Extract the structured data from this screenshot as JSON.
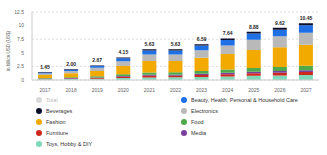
{
  "chart_data": {
    "type": "bar",
    "stacked": true,
    "grid": true,
    "legend": "bottom",
    "y_label": "in billion USD (US$)",
    "categories": [
      "2017",
      "2018",
      "2019",
      "2020",
      "2021",
      "2022",
      "2023",
      "2024",
      "2025",
      "2026",
      "2027"
    ],
    "ylim": [
      0,
      12.5
    ],
    "yticks": [
      0,
      2.5,
      5,
      7.5,
      10,
      12.5
    ],
    "series": [
      {
        "name": "Beverages",
        "color": "#0b0d2a",
        "values": [
          0.05,
          0.07,
          0.1,
          0.15,
          0.22,
          0.22,
          0.25,
          0.29,
          0.35,
          0.36,
          0.4
        ]
      },
      {
        "name": "Fashion",
        "color": "#f2a900",
        "values": [
          0.54,
          0.75,
          1.0,
          1.55,
          2.1,
          2.09,
          2.46,
          2.85,
          3.31,
          3.59,
          3.9
        ]
      },
      {
        "name": "Furniture",
        "color": "#d0271d",
        "values": [
          0.08,
          0.11,
          0.14,
          0.22,
          0.3,
          0.3,
          0.35,
          0.4,
          0.47,
          0.51,
          0.55
        ]
      },
      {
        "name": "Toys, Hobby & DIY",
        "color": "#7fd8b8",
        "values": [
          0.13,
          0.17,
          0.23,
          0.36,
          0.48,
          0.49,
          0.57,
          0.66,
          0.76,
          0.83,
          0.9
        ]
      },
      {
        "name": "Beauty, Health, Personal & Household Care",
        "color": "#1f6fe5",
        "values": [
          0.19,
          0.26,
          0.34,
          0.54,
          0.73,
          0.73,
          0.85,
          0.99,
          1.15,
          1.24,
          1.35
        ]
      },
      {
        "name": "Electronics",
        "color": "#b9b9b9",
        "values": [
          0.3,
          0.42,
          0.56,
          0.87,
          1.18,
          1.18,
          1.38,
          1.6,
          1.86,
          2.02,
          2.2
        ]
      },
      {
        "name": "Food",
        "color": "#4fa84a",
        "values": [
          0.11,
          0.15,
          0.21,
          0.32,
          0.43,
          0.43,
          0.51,
          0.59,
          0.68,
          0.74,
          0.8
        ]
      },
      {
        "name": "Media",
        "color": "#7b3f9e",
        "values": [
          0.05,
          0.07,
          0.09,
          0.14,
          0.19,
          0.19,
          0.22,
          0.26,
          0.3,
          0.33,
          0.35
        ]
      }
    ],
    "totals": {
      "name": "Total",
      "color": "#d9d9d9",
      "values": [
        1.45,
        2.0,
        2.67,
        4.15,
        5.63,
        5.63,
        6.59,
        7.64,
        8.88,
        9.62,
        10.45
      ],
      "value_labels": [
        "1.45",
        "2.00",
        "2.67",
        "4.15",
        "5.63",
        "5.63",
        "6.59",
        "7.64",
        "8.88",
        "9.62",
        "10.45"
      ]
    }
  }
}
